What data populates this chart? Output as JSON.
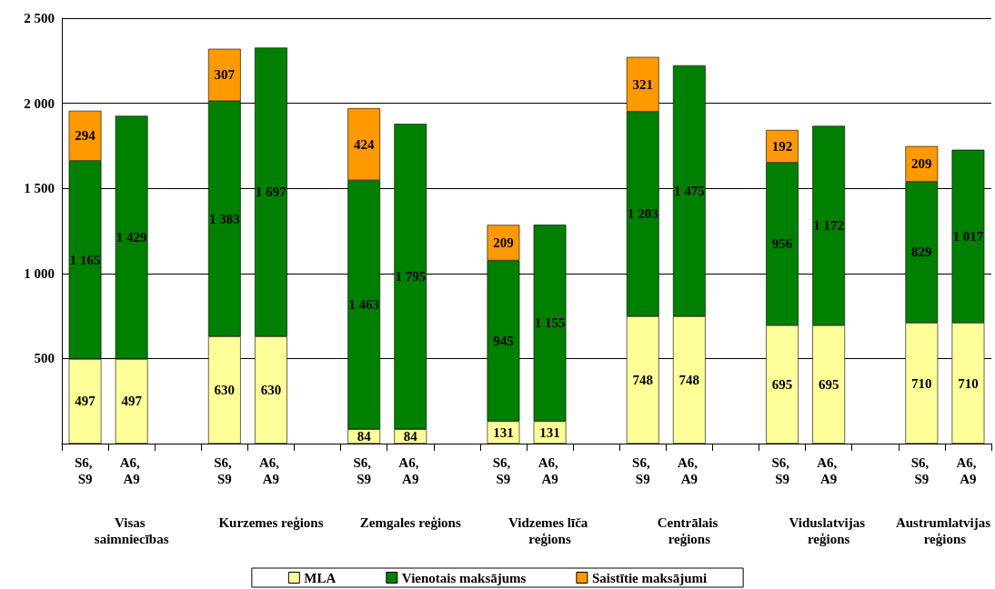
{
  "chart_data": {
    "type": "bar",
    "stacked": true,
    "categories": [
      "S6, S9",
      "A6, A9",
      null,
      "S6, S9",
      "A6, A9",
      null,
      "S6, S9",
      "A6, A9",
      null,
      "S6, S9",
      "A6, A9",
      null,
      "S6, S9",
      "A6, A9",
      null,
      "S6, S9",
      "A6, A9",
      null,
      "S6, S9",
      "A6, A9"
    ],
    "series": [
      {
        "name": "MLA",
        "color": "#ffff99",
        "values": [
          497,
          497,
          null,
          630,
          630,
          null,
          84,
          84,
          null,
          131,
          131,
          null,
          748,
          748,
          null,
          695,
          695,
          null,
          710,
          710
        ],
        "value_labels": [
          "497",
          "497",
          null,
          "630",
          "630",
          null,
          "84",
          "84",
          null,
          "131",
          "131",
          null,
          "748",
          "748",
          null,
          "695",
          "695",
          null,
          "710",
          "710"
        ]
      },
      {
        "name": "Vienotais maksājums",
        "color": "#008000",
        "values": [
          1165,
          1429,
          null,
          1383,
          1697,
          null,
          1463,
          1795,
          null,
          945,
          1155,
          null,
          1203,
          1475,
          null,
          956,
          1172,
          null,
          829,
          1017
        ],
        "value_labels": [
          "1 165",
          "1 429",
          null,
          "1 383",
          "1 697",
          null,
          "1 463",
          "1 795",
          null,
          "945",
          "1 155",
          null,
          "1 203",
          "1 475",
          null,
          "956",
          "1 172",
          null,
          "829",
          "1 017"
        ]
      },
      {
        "name": "Saistītie maksājumi",
        "color": "#ff9900",
        "values": [
          294,
          null,
          null,
          307,
          null,
          null,
          424,
          null,
          null,
          209,
          null,
          null,
          321,
          null,
          null,
          192,
          null,
          null,
          209,
          null
        ],
        "value_labels": [
          "294",
          null,
          null,
          "307",
          null,
          null,
          "424",
          null,
          null,
          "209",
          null,
          null,
          "321",
          null,
          null,
          "192",
          null,
          null,
          "209",
          null
        ]
      }
    ],
    "annotations": [
      "Visas saimniecības",
      "Kurzemes reģions",
      "Zemgales reģions",
      "Vidzemes līča reģions",
      "Centrālais reģions",
      "Viduslatvijas reģions",
      "Austrumlatvijas reģions"
    ],
    "ylim": [
      0,
      2500
    ],
    "yticks": [
      {
        "value": 0,
        "label": null
      },
      {
        "value": 500,
        "label": "500"
      },
      {
        "value": 1000,
        "label": "1 000"
      },
      {
        "value": 1500,
        "label": "1 500"
      },
      {
        "value": 2000,
        "label": "2 000"
      },
      {
        "value": 2500,
        "label": "2 500"
      }
    ],
    "grid": "y",
    "legend": "bottom"
  }
}
